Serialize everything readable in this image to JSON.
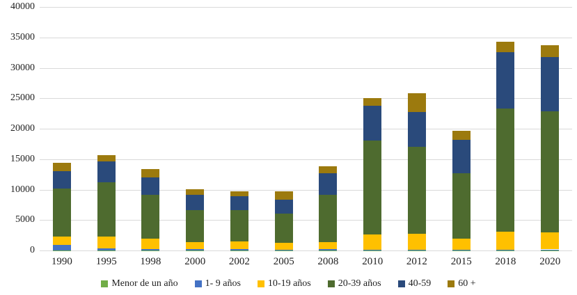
{
  "chart_data": {
    "type": "bar",
    "stacked": true,
    "title": "",
    "xlabel": "",
    "ylabel": "",
    "categories": [
      "1990",
      "1995",
      "1998",
      "2000",
      "2002",
      "2005",
      "2008",
      "2010",
      "2012",
      "2015",
      "2018",
      "2020"
    ],
    "series": [
      {
        "name": "Menor de un año",
        "color": "#71AD47",
        "values": [
          50,
          50,
          50,
          50,
          50,
          30,
          50,
          30,
          30,
          30,
          50,
          50
        ]
      },
      {
        "name": "1- 9 años",
        "color": "#4472C4",
        "values": [
          900,
          300,
          150,
          200,
          200,
          100,
          150,
          100,
          100,
          70,
          120,
          120
        ]
      },
      {
        "name": "10-19 años",
        "color": "#FFC000",
        "values": [
          1350,
          1950,
          1750,
          1150,
          1200,
          1150,
          1150,
          2450,
          2600,
          1850,
          2900,
          2750
        ]
      },
      {
        "name": "20-39 años",
        "color": "#4E6B2F",
        "values": [
          7900,
          8900,
          7200,
          5200,
          5150,
          4750,
          7800,
          15500,
          14350,
          10750,
          20300,
          19900
        ]
      },
      {
        "name": "40-59",
        "color": "#2A4A7B",
        "values": [
          2800,
          3450,
          2900,
          2500,
          2300,
          2300,
          3550,
          5650,
          5700,
          5500,
          9200,
          8950
        ]
      },
      {
        "name": "60 +",
        "color": "#9C7A0E",
        "values": [
          1450,
          1000,
          1300,
          950,
          850,
          1350,
          1150,
          1250,
          3100,
          1500,
          1750,
          2000
        ]
      }
    ],
    "ylim": [
      0,
      40000
    ],
    "ytick_interval": 5000,
    "yticks": [
      "0",
      "5000",
      "10000",
      "15000",
      "20000",
      "25000",
      "30000",
      "35000",
      "40000"
    ],
    "grid": true,
    "legend_position": "bottom"
  },
  "colors": {
    "gridline": "#D9D9D9",
    "text": "#1F1F1F",
    "background": "#FFFFFF"
  }
}
